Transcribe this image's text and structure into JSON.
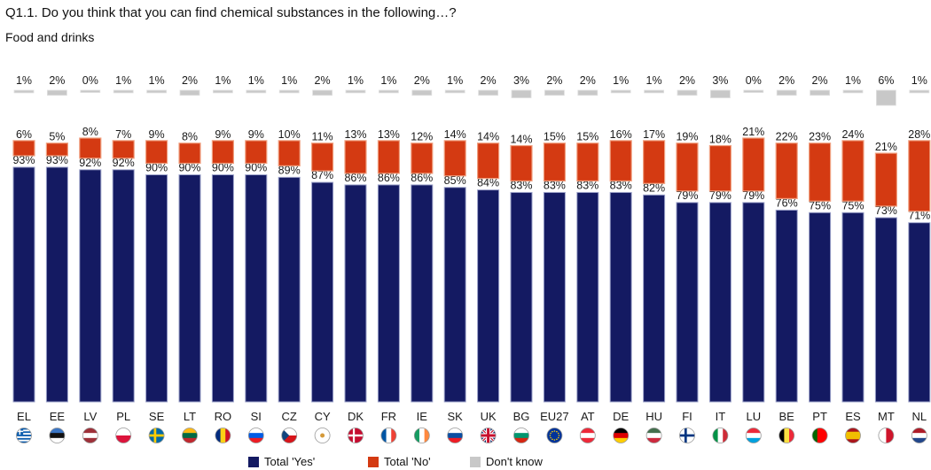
{
  "title": "Q1.1. Do you think that you can find chemical substances in the following…?",
  "subtitle": "Food and drinks",
  "colors": {
    "yes": "#141a62",
    "no": "#d43a12",
    "dk": "#c8c8c8",
    "no_border": "#f0a080",
    "dk_border": "#e0e0e0"
  },
  "legend": [
    {
      "label": "Total 'Yes'",
      "color": "#141a62"
    },
    {
      "label": "Total 'No'",
      "color": "#d43a12"
    },
    {
      "label": "Don't know",
      "color": "#c8c8c8"
    }
  ],
  "chart_data": {
    "type": "bar",
    "categories": [
      "EL",
      "EE",
      "LV",
      "PL",
      "SE",
      "LT",
      "RO",
      "SI",
      "CZ",
      "CY",
      "DK",
      "FR",
      "IE",
      "SK",
      "UK",
      "BG",
      "EU27",
      "AT",
      "DE",
      "HU",
      "FI",
      "IT",
      "LU",
      "BE",
      "PT",
      "ES",
      "MT",
      "NL"
    ],
    "series": [
      {
        "name": "Total 'Yes'",
        "values": [
          93,
          93,
          92,
          92,
          90,
          90,
          90,
          90,
          89,
          87,
          86,
          86,
          86,
          85,
          84,
          83,
          83,
          83,
          83,
          82,
          79,
          79,
          79,
          76,
          75,
          75,
          73,
          71
        ]
      },
      {
        "name": "Total 'No'",
        "values": [
          6,
          5,
          8,
          7,
          9,
          8,
          9,
          9,
          10,
          11,
          13,
          13,
          12,
          14,
          14,
          14,
          15,
          15,
          16,
          17,
          19,
          18,
          21,
          22,
          23,
          24,
          21,
          28
        ]
      },
      {
        "name": "Don't know",
        "values": [
          1,
          2,
          0,
          1,
          1,
          2,
          1,
          1,
          1,
          2,
          1,
          1,
          2,
          1,
          2,
          3,
          2,
          2,
          1,
          1,
          2,
          3,
          0,
          2,
          2,
          1,
          6,
          1
        ]
      }
    ],
    "value_labels": {
      "yes": [
        "93%",
        "93%",
        "92%",
        "92%",
        "90%",
        "90%",
        "90%",
        "90%",
        "89%",
        "87%",
        "86%",
        "86%",
        "86%",
        "85%",
        "84%",
        "83%",
        "83%",
        "83%",
        "83%",
        "82%",
        "79%",
        "79%",
        "79%",
        "76%",
        "75%",
        "75%",
        "73%",
        "71%"
      ],
      "no": [
        "6%",
        "5%",
        "8%",
        "7%",
        "9%",
        "8%",
        "9%",
        "9%",
        "10%",
        "11%",
        "13%",
        "13%",
        "12%",
        "14%",
        "14%",
        "14%",
        "15%",
        "15%",
        "16%",
        "17%",
        "19%",
        "18%",
        "21%",
        "22%",
        "23%",
        "24%",
        "21%",
        "28%"
      ],
      "dk": [
        "1%",
        "2%",
        "0%",
        "1%",
        "1%",
        "2%",
        "1%",
        "1%",
        "1%",
        "2%",
        "1%",
        "1%",
        "2%",
        "1%",
        "2%",
        "3%",
        "2%",
        "2%",
        "1%",
        "1%",
        "2%",
        "3%",
        "0%",
        "2%",
        "2%",
        "1%",
        "6%",
        "1%"
      ]
    },
    "ylim": [
      0,
      100
    ],
    "stacked": true,
    "grid": false,
    "legend_position": "bottom"
  },
  "flags": [
    {
      "kind": "greece"
    },
    {
      "kind": "h",
      "colors": [
        "#3a75c4",
        "#111111",
        "#ffffff"
      ]
    },
    {
      "kind": "h",
      "colors": [
        "#9e3039",
        "#ffffff",
        "#9e3039"
      ]
    },
    {
      "kind": "h",
      "colors": [
        "#ffffff",
        "#dc143c"
      ]
    },
    {
      "kind": "sweden"
    },
    {
      "kind": "h",
      "colors": [
        "#fdb913",
        "#006a44",
        "#c1272d"
      ]
    },
    {
      "kind": "v",
      "colors": [
        "#002b7f",
        "#fcd116",
        "#ce1126"
      ]
    },
    {
      "kind": "h",
      "colors": [
        "#ffffff",
        "#005ce5",
        "#ed1c24"
      ]
    },
    {
      "kind": "czech"
    },
    {
      "kind": "solid",
      "colors": [
        "#ffffff"
      ]
    },
    {
      "kind": "denmark"
    },
    {
      "kind": "v",
      "colors": [
        "#0055a4",
        "#ffffff",
        "#ef4135"
      ]
    },
    {
      "kind": "v",
      "colors": [
        "#169b62",
        "#ffffff",
        "#ff883e"
      ]
    },
    {
      "kind": "h",
      "colors": [
        "#ffffff",
        "#0b4ea2",
        "#ee1c25"
      ]
    },
    {
      "kind": "uk"
    },
    {
      "kind": "h",
      "colors": [
        "#ffffff",
        "#00966e",
        "#d62612"
      ]
    },
    {
      "kind": "eu"
    },
    {
      "kind": "h",
      "colors": [
        "#ed2939",
        "#ffffff",
        "#ed2939"
      ]
    },
    {
      "kind": "h",
      "colors": [
        "#000000",
        "#dd0000",
        "#ffce00"
      ]
    },
    {
      "kind": "h",
      "colors": [
        "#436f4d",
        "#ffffff",
        "#cd2a3e"
      ]
    },
    {
      "kind": "finland"
    },
    {
      "kind": "v",
      "colors": [
        "#009246",
        "#ffffff",
        "#ce2b37"
      ]
    },
    {
      "kind": "h",
      "colors": [
        "#ed2939",
        "#ffffff",
        "#00a1de"
      ]
    },
    {
      "kind": "v",
      "colors": [
        "#000000",
        "#fae042",
        "#ed2939"
      ]
    },
    {
      "kind": "v",
      "colors": [
        "#006600",
        "#ff0000",
        "#ff0000"
      ]
    },
    {
      "kind": "h",
      "colors": [
        "#aa151b",
        "#f1bf00",
        "#f1bf00",
        "#aa151b"
      ]
    },
    {
      "kind": "v",
      "colors": [
        "#ffffff",
        "#cf142b"
      ]
    },
    {
      "kind": "h",
      "colors": [
        "#ae1c28",
        "#ffffff",
        "#21468b"
      ]
    }
  ]
}
